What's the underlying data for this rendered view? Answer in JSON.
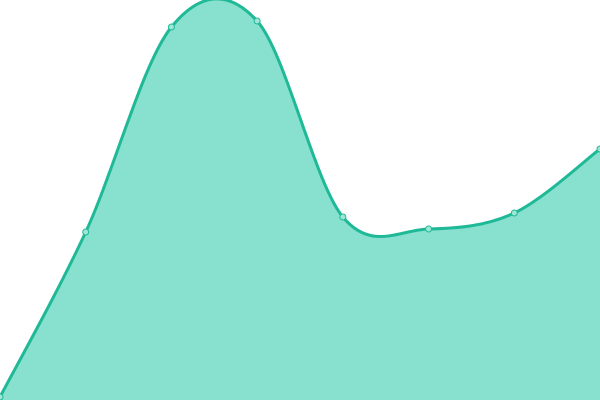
{
  "chart_data": {
    "type": "area",
    "title": "",
    "xlabel": "",
    "ylabel": "",
    "x": [
      0,
      1,
      2,
      3,
      4,
      5,
      6,
      7
    ],
    "values": [
      3,
      168,
      373,
      379,
      183,
      171,
      187,
      251
    ],
    "ylim": [
      0,
      400
    ],
    "grid": false,
    "axes_visible": false,
    "curve": "smooth",
    "colors": {
      "line": "#1fb997",
      "fill": "#88e0cf",
      "point_fill": "#9fe6d6",
      "point_stroke": "#1fb997"
    }
  }
}
